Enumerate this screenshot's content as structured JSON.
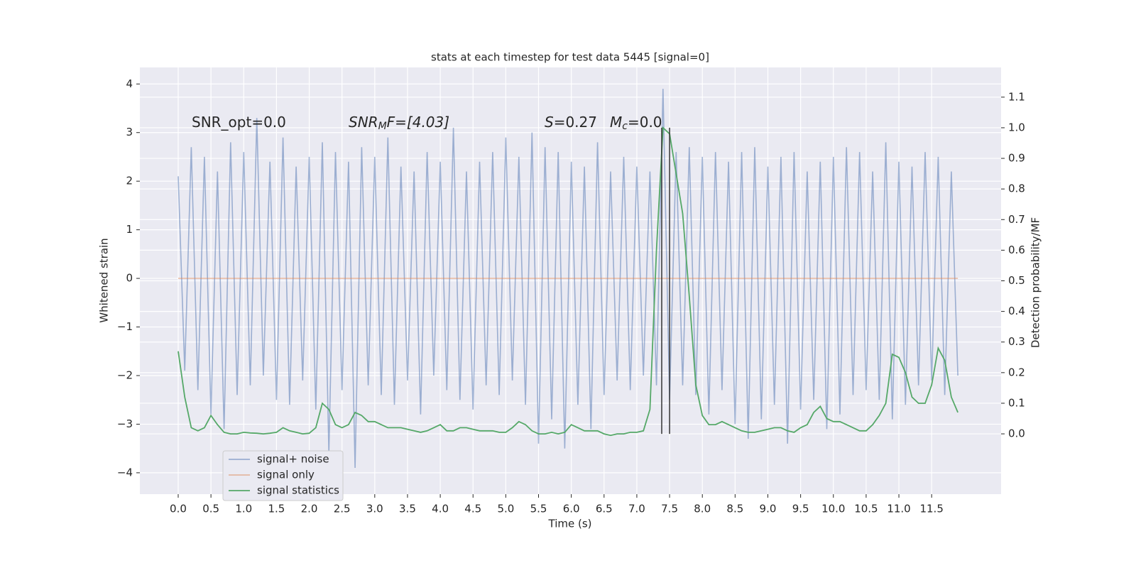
{
  "chart_data": {
    "type": "line",
    "title": "stats at each timestep for test data 5445 [signal=0]",
    "xlabel": "Time (s)",
    "ylabel": "Whitened strain",
    "y2label": "Detection probability/MF",
    "x": [
      0,
      0.1,
      0.2,
      0.3,
      0.4,
      0.5,
      0.6,
      0.7,
      0.8,
      0.9,
      1,
      1.1,
      1.2,
      1.3,
      1.4,
      1.5,
      1.6,
      1.7,
      1.8,
      1.9,
      2,
      2.1,
      2.2,
      2.3,
      2.4,
      2.5,
      2.6,
      2.7,
      2.8,
      2.9,
      3,
      3.1,
      3.2,
      3.3,
      3.4,
      3.5,
      3.6,
      3.7,
      3.8,
      3.9,
      4,
      4.1,
      4.2,
      4.3,
      4.4,
      4.5,
      4.6,
      4.7,
      4.8,
      4.9,
      5,
      5.1,
      5.2,
      5.3,
      5.4,
      5.5,
      5.6,
      5.7,
      5.8,
      5.9,
      6,
      6.1,
      6.2,
      6.3,
      6.4,
      6.5,
      6.6,
      6.7,
      6.8,
      6.9,
      7,
      7.1,
      7.2,
      7.3,
      7.4,
      7.5,
      7.6,
      7.7,
      7.8,
      7.9,
      8,
      8.1,
      8.2,
      8.3,
      8.4,
      8.5,
      8.6,
      8.7,
      8.8,
      8.9,
      9,
      9.1,
      9.2,
      9.3,
      9.4,
      9.5,
      9.6,
      9.7,
      9.8,
      9.9,
      10,
      10.1,
      10.2,
      10.3,
      10.4,
      10.5,
      10.6,
      10.7,
      10.8,
      10.9,
      11,
      11.1,
      11.2,
      11.3,
      11.4,
      11.5,
      11.6,
      11.7,
      11.8,
      11.9
    ],
    "series": [
      {
        "name": "signal+ noise",
        "color": "#4c72b0",
        "values": [
          2.1,
          -1.9,
          2.7,
          -2.3,
          2.5,
          -2.8,
          2.2,
          -3.1,
          2.8,
          -2.4,
          2.6,
          -2.2,
          3.3,
          -2.0,
          2.4,
          -2.5,
          2.9,
          -2.6,
          2.3,
          -2.1,
          2.5,
          -2.7,
          2.8,
          -3.6,
          2.6,
          -2.3,
          2.4,
          -3.9,
          2.7,
          -2.2,
          2.5,
          -2.4,
          2.9,
          -2.6,
          2.3,
          -2.1,
          2.2,
          -2.8,
          2.6,
          -2.0,
          2.4,
          -2.3,
          3.1,
          -2.5,
          2.2,
          -2.7,
          2.4,
          -2.2,
          2.6,
          -2.4,
          2.9,
          -2.1,
          2.5,
          -2.6,
          3.0,
          -3.4,
          2.7,
          -2.9,
          2.6,
          -3.5,
          2.4,
          -2.6,
          2.3,
          -3.1,
          2.8,
          -2.4,
          2.2,
          -2.1,
          2.5,
          -2.3,
          2.3,
          -2.0,
          2.2,
          -2.2,
          3.9,
          -2.5,
          2.6,
          -2.2,
          2.7,
          -2.4,
          2.5,
          -2.8,
          2.6,
          -2.3,
          2.4,
          -3.0,
          2.6,
          -3.3,
          2.7,
          -2.9,
          2.3,
          -2.6,
          2.5,
          -3.4,
          2.6,
          -2.7,
          2.2,
          -2.5,
          2.4,
          -3.1,
          2.5,
          -2.8,
          2.7,
          -2.4,
          2.6,
          -2.3,
          2.2,
          -2.5,
          2.8,
          -2.9,
          2.4,
          -2.6,
          2.3,
          -2.2,
          2.6,
          -2.1,
          2.5,
          -2.4,
          2.2,
          -2.0
        ]
      },
      {
        "name": "signal only",
        "color": "#dd8452",
        "x": [
          0,
          11.9
        ],
        "values": [
          0,
          0
        ]
      },
      {
        "name": "signal statistics",
        "color": "#55a868",
        "axis": "y2",
        "values": [
          0.27,
          0.12,
          0.02,
          0.01,
          0.02,
          0.06,
          0.03,
          0.005,
          0.0,
          0.0,
          0.005,
          0.003,
          0.002,
          0.0,
          0.002,
          0.005,
          0.02,
          0.01,
          0.005,
          0.0,
          0.002,
          0.02,
          0.1,
          0.08,
          0.03,
          0.02,
          0.03,
          0.07,
          0.06,
          0.04,
          0.04,
          0.03,
          0.02,
          0.02,
          0.02,
          0.015,
          0.01,
          0.005,
          0.01,
          0.02,
          0.03,
          0.01,
          0.01,
          0.02,
          0.02,
          0.015,
          0.01,
          0.01,
          0.01,
          0.005,
          0.005,
          0.02,
          0.04,
          0.03,
          0.01,
          0.0,
          0.0,
          0.005,
          0.0,
          0.005,
          0.03,
          0.02,
          0.01,
          0.01,
          0.01,
          0.0,
          -0.005,
          0.0,
          0.0,
          0.005,
          0.005,
          0.01,
          0.08,
          0.6,
          1.0,
          0.98,
          0.85,
          0.72,
          0.45,
          0.16,
          0.06,
          0.03,
          0.03,
          0.04,
          0.03,
          0.02,
          0.01,
          0.005,
          0.005,
          0.01,
          0.015,
          0.02,
          0.02,
          0.01,
          0.005,
          0.02,
          0.03,
          0.07,
          0.09,
          0.05,
          0.04,
          0.04,
          0.03,
          0.02,
          0.01,
          0.01,
          0.03,
          0.06,
          0.1,
          0.26,
          0.25,
          0.2,
          0.12,
          0.1,
          0.1,
          0.16,
          0.28,
          0.24,
          0.12,
          0.07
        ]
      }
    ],
    "vlines": [
      7.38,
      7.5
    ],
    "vline_y2": [
      0,
      1
    ],
    "vline_color": "#333333",
    "annotations": [
      {
        "parts": [
          "SNR_opt=0.0"
        ]
      },
      {
        "parts": [
          "SNR",
          "M",
          "F=[4.03]"
        ]
      },
      {
        "parts": [
          "S",
          "=0.27"
        ]
      },
      {
        "parts": [
          "M",
          "c",
          "=0.0"
        ]
      }
    ],
    "xlim": [
      -0.585,
      12.56
    ],
    "ylim": [
      -4.44,
      4.34
    ],
    "y2lim": [
      -0.197,
      1.197
    ],
    "xticks": [
      {
        "value": 0,
        "label": "0.0"
      },
      {
        "value": 0.5,
        "label": "0.5"
      },
      {
        "value": 1,
        "label": "1.0"
      },
      {
        "value": 1.5,
        "label": "1.5"
      },
      {
        "value": 2,
        "label": "2.0"
      },
      {
        "value": 2.5,
        "label": "2.5"
      },
      {
        "value": 3,
        "label": "3.0"
      },
      {
        "value": 3.5,
        "label": "3.5"
      },
      {
        "value": 4,
        "label": "4.0"
      },
      {
        "value": 4.5,
        "label": "4.5"
      },
      {
        "value": 5,
        "label": "5.0"
      },
      {
        "value": 5.5,
        "label": "5.5"
      },
      {
        "value": 6,
        "label": "6.0"
      },
      {
        "value": 6.5,
        "label": "6.5"
      },
      {
        "value": 7,
        "label": "7.0"
      },
      {
        "value": 7.5,
        "label": "7.5"
      },
      {
        "value": 8,
        "label": "8.0"
      },
      {
        "value": 8.5,
        "label": "8.5"
      },
      {
        "value": 9,
        "label": "9.0"
      },
      {
        "value": 9.5,
        "label": "9.5"
      },
      {
        "value": 10,
        "label": "10.0"
      },
      {
        "value": 10.5,
        "label": "10.5"
      },
      {
        "value": 11,
        "label": "11.0"
      },
      {
        "value": 11.5,
        "label": "11.5"
      }
    ],
    "yticks": [
      {
        "value": -4,
        "label": "−4"
      },
      {
        "value": -3,
        "label": "−3"
      },
      {
        "value": -2,
        "label": "−2"
      },
      {
        "value": -1,
        "label": "−1"
      },
      0,
      1,
      2,
      3,
      4
    ],
    "y2ticks": [
      {
        "value": 0,
        "label": "0.0"
      },
      {
        "value": 0.1,
        "label": "0.1"
      },
      {
        "value": 0.2,
        "label": "0.2"
      },
      {
        "value": 0.3,
        "label": "0.3"
      },
      {
        "value": 0.4,
        "label": "0.4"
      },
      {
        "value": 0.5,
        "label": "0.5"
      },
      {
        "value": 0.6,
        "label": "0.6"
      },
      {
        "value": 0.7,
        "label": "0.7"
      },
      {
        "value": 0.8,
        "label": "0.8"
      },
      {
        "value": 0.9,
        "label": "0.9"
      },
      {
        "value": 1,
        "label": "1.0"
      },
      {
        "value": 1.1,
        "label": "1.1"
      }
    ],
    "grid": true,
    "legend": "lower left"
  }
}
